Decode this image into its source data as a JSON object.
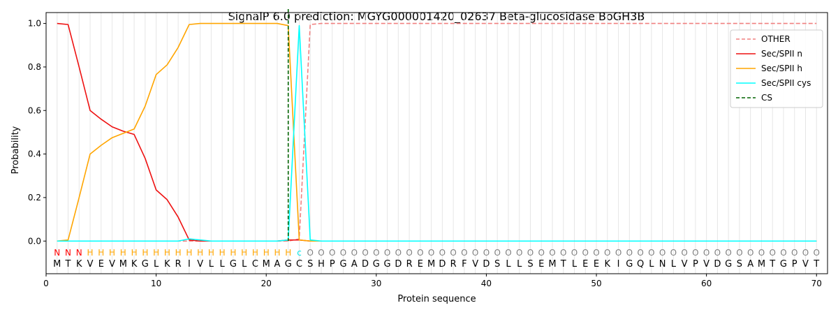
{
  "chart_data": {
    "type": "line",
    "title": "SignalP 6.0 prediction: MGYG000001420_02637 Beta-glucosidase BoGH3B",
    "xlabel": "Protein sequence",
    "ylabel": "Probability",
    "xlim": [
      0,
      71
    ],
    "ylim": [
      -0.15,
      1.05
    ],
    "xticks": [
      "0",
      "10",
      "20",
      "30",
      "40",
      "50",
      "60",
      "70"
    ],
    "yticks": [
      "0.0",
      "0.2",
      "0.4",
      "0.6",
      "0.8",
      "1.0"
    ],
    "grid": "vertical lines at each residue",
    "legend_position": "top-right",
    "sequence": [
      "M",
      "T",
      "K",
      "V",
      "E",
      "V",
      "M",
      "K",
      "G",
      "L",
      "K",
      "R",
      "I",
      "V",
      "L",
      "L",
      "G",
      "L",
      "C",
      "M",
      "A",
      "G",
      "C",
      "S",
      "H",
      "P",
      "G",
      "A",
      "D",
      "G",
      "G",
      "D",
      "R",
      "E",
      "M",
      "D",
      "R",
      "F",
      "V",
      "D",
      "S",
      "L",
      "L",
      "S",
      "E",
      "M",
      "T",
      "L",
      "E",
      "E",
      "K",
      "I",
      "G",
      "Q",
      "L",
      "N",
      "L",
      "V",
      "P",
      "V",
      "D",
      "G",
      "S",
      "A",
      "M",
      "T",
      "G",
      "P",
      "V",
      "T"
    ],
    "region_labels": [
      "N",
      "N",
      "N",
      "H",
      "H",
      "H",
      "H",
      "H",
      "H",
      "H",
      "H",
      "H",
      "H",
      "H",
      "H",
      "H",
      "H",
      "H",
      "H",
      "H",
      "H",
      "H",
      "C",
      "O",
      "O",
      "O",
      "O",
      "O",
      "O",
      "O",
      "O",
      "O",
      "O",
      "O",
      "O",
      "O",
      "O",
      "O",
      "O",
      "O",
      "O",
      "O",
      "O",
      "O",
      "O",
      "O",
      "O",
      "O",
      "O",
      "O",
      "O",
      "O",
      "O",
      "O",
      "O",
      "O",
      "O",
      "O",
      "O",
      "O",
      "O",
      "O",
      "O",
      "O",
      "O",
      "O",
      "O",
      "O",
      "O",
      "O"
    ],
    "region_colors": {
      "N": "#ff0000",
      "H": "#ffa500",
      "C": "#00e5e5",
      "O": "#808080"
    },
    "series": [
      {
        "name": "OTHER",
        "color": "#f08080",
        "dash": "dashed",
        "values": [
          0,
          0,
          0,
          0,
          0,
          0,
          0,
          0,
          0,
          0,
          0,
          0,
          0,
          0,
          0,
          0,
          0,
          0,
          0,
          0,
          0,
          0,
          0.01,
          0.995,
          1,
          1,
          1,
          1,
          1,
          1,
          1,
          1,
          1,
          1,
          1,
          1,
          1,
          1,
          1,
          1,
          1,
          1,
          1,
          1,
          1,
          1,
          1,
          1,
          1,
          1,
          1,
          1,
          1,
          1,
          1,
          1,
          1,
          1,
          1,
          1,
          1,
          1,
          1,
          1,
          1,
          1,
          1,
          1,
          1,
          1
        ]
      },
      {
        "name": "Sec/SPII n",
        "color": "#ee1111",
        "dash": "solid",
        "values": [
          1.0,
          0.995,
          0.8,
          0.6,
          0.56,
          0.525,
          0.505,
          0.49,
          0.38,
          0.235,
          0.19,
          0.11,
          0.005,
          0,
          0,
          0,
          0,
          0,
          0,
          0,
          0,
          0.005,
          0.005,
          0,
          0,
          0,
          0,
          0,
          0,
          0,
          0,
          0,
          0,
          0,
          0,
          0,
          0,
          0,
          0,
          0,
          0,
          0,
          0,
          0,
          0,
          0,
          0,
          0,
          0,
          0,
          0,
          0,
          0,
          0,
          0,
          0,
          0,
          0,
          0,
          0,
          0,
          0,
          0,
          0,
          0,
          0,
          0,
          0,
          0,
          0
        ]
      },
      {
        "name": "Sec/SPII h",
        "color": "#ffa500",
        "dash": "solid",
        "values": [
          0,
          0.005,
          0.2,
          0.4,
          0.44,
          0.475,
          0.495,
          0.515,
          0.62,
          0.765,
          0.81,
          0.89,
          0.995,
          1.0,
          1.0,
          1.0,
          1.0,
          1.0,
          1.0,
          1.0,
          1.0,
          0.99,
          0.005,
          0,
          0,
          0,
          0,
          0,
          0,
          0,
          0,
          0,
          0,
          0,
          0,
          0,
          0,
          0,
          0,
          0,
          0,
          0,
          0,
          0,
          0,
          0,
          0,
          0,
          0,
          0,
          0,
          0,
          0,
          0,
          0,
          0,
          0,
          0,
          0,
          0,
          0,
          0,
          0,
          0,
          0,
          0,
          0,
          0,
          0,
          0
        ]
      },
      {
        "name": "Sec/SPII cys",
        "color": "#00ffff",
        "dash": "solid",
        "values": [
          0,
          0,
          0,
          0,
          0,
          0,
          0,
          0,
          0,
          0,
          0,
          0,
          0.01,
          0.005,
          0,
          0,
          0,
          0,
          0,
          0,
          0,
          0.005,
          0.99,
          0.005,
          0,
          0,
          0,
          0,
          0,
          0,
          0,
          0,
          0,
          0,
          0,
          0,
          0,
          0,
          0,
          0,
          0,
          0,
          0,
          0,
          0,
          0,
          0,
          0,
          0,
          0,
          0,
          0,
          0,
          0,
          0,
          0,
          0,
          0,
          0,
          0,
          0,
          0,
          0,
          0,
          0,
          0,
          0,
          0,
          0,
          0
        ]
      },
      {
        "name": "CS",
        "color": "#006400",
        "dash": "dashed",
        "cs_position": 22
      }
    ]
  }
}
